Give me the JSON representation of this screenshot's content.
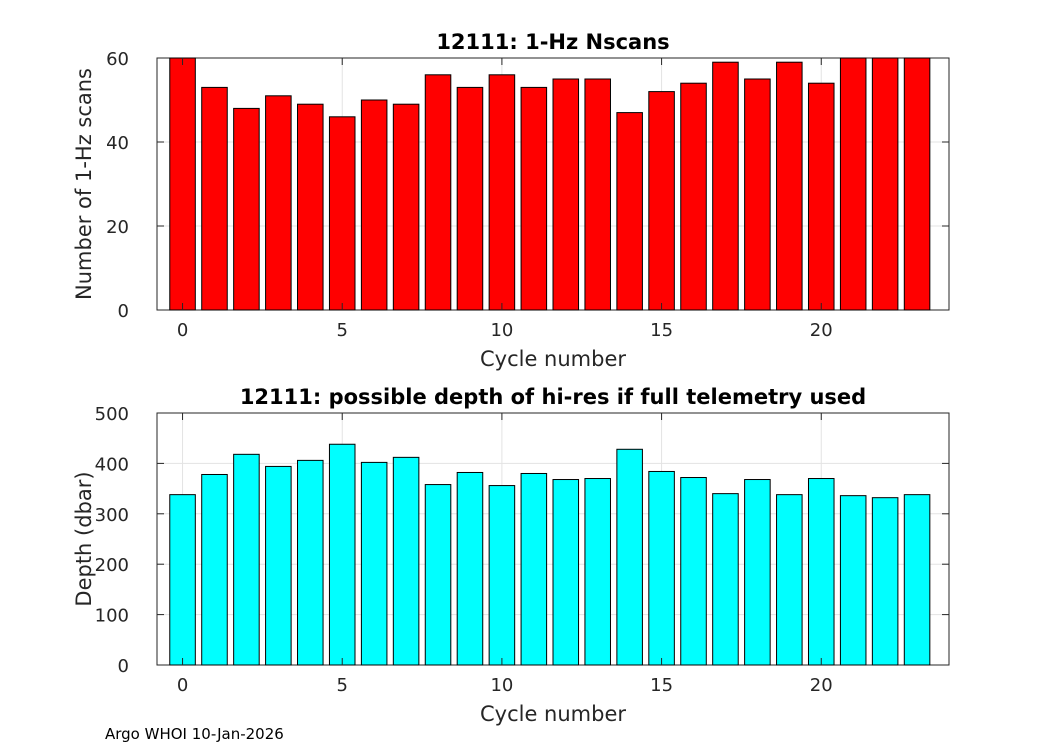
{
  "footer": {
    "text": "Argo WHOI 10-Jan-2026"
  },
  "chart_data": [
    {
      "type": "bar",
      "title": "12111: 1-Hz Nscans",
      "xlabel": "Cycle number",
      "ylabel": "Number of 1-Hz scans",
      "x": [
        0,
        1,
        2,
        3,
        4,
        5,
        6,
        7,
        8,
        9,
        10,
        11,
        12,
        13,
        14,
        15,
        16,
        17,
        18,
        19,
        20,
        21,
        22,
        23
      ],
      "values": [
        60,
        53,
        48,
        51,
        49,
        46,
        50,
        49,
        56,
        53,
        56,
        53,
        55,
        55,
        47,
        52,
        54,
        59,
        55,
        59,
        54,
        60,
        60,
        60
      ],
      "xlim": [
        -0.8,
        24.0
      ],
      "ylim": [
        0,
        60
      ],
      "xticks": [
        0,
        5,
        10,
        15,
        20
      ],
      "yticks": [
        0,
        20,
        40,
        60
      ],
      "bar_color": "#ff0000",
      "grid": true
    },
    {
      "type": "bar",
      "title": "12111: possible depth of hi-res if full telemetry used",
      "xlabel": "Cycle number",
      "ylabel": "Depth (dbar)",
      "x": [
        0,
        1,
        2,
        3,
        4,
        5,
        6,
        7,
        8,
        9,
        10,
        11,
        12,
        13,
        14,
        15,
        16,
        17,
        18,
        19,
        20,
        21,
        22,
        23
      ],
      "values": [
        338,
        378,
        418,
        394,
        406,
        438,
        402,
        412,
        358,
        382,
        356,
        380,
        368,
        370,
        428,
        384,
        372,
        340,
        368,
        338,
        370,
        336,
        332,
        338
      ],
      "xlim": [
        -0.8,
        24.0
      ],
      "ylim": [
        0,
        500
      ],
      "xticks": [
        0,
        5,
        10,
        15,
        20
      ],
      "yticks": [
        0,
        100,
        200,
        300,
        400,
        500
      ],
      "bar_color": "#00ffff",
      "grid": true
    }
  ]
}
